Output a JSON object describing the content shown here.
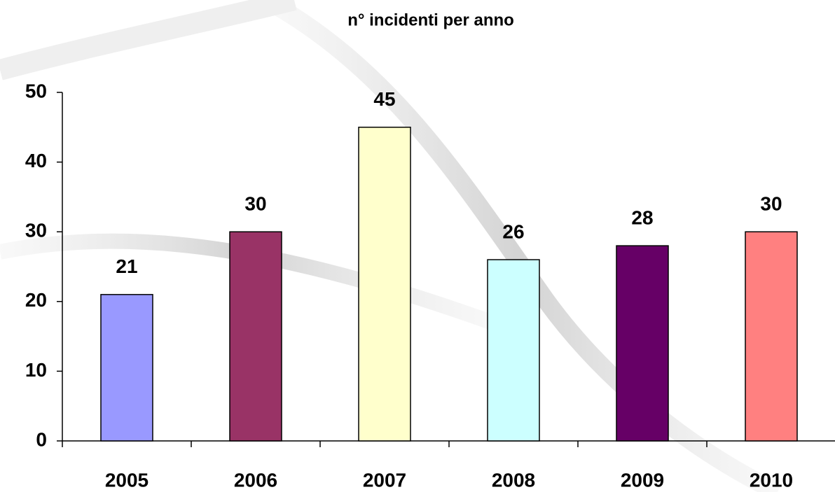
{
  "chart_data": {
    "type": "bar",
    "title": "n° incidenti per anno",
    "categories": [
      "2005",
      "2006",
      "2007",
      "2008",
      "2009",
      "2010"
    ],
    "values": [
      21,
      30,
      45,
      26,
      28,
      30
    ],
    "colors": [
      "#9999ff",
      "#993366",
      "#ffffcc",
      "#ccffff",
      "#660066",
      "#ff8080"
    ],
    "ylim": [
      0,
      50
    ],
    "yticks": [
      0,
      10,
      20,
      30,
      40,
      50
    ],
    "grid": false
  }
}
